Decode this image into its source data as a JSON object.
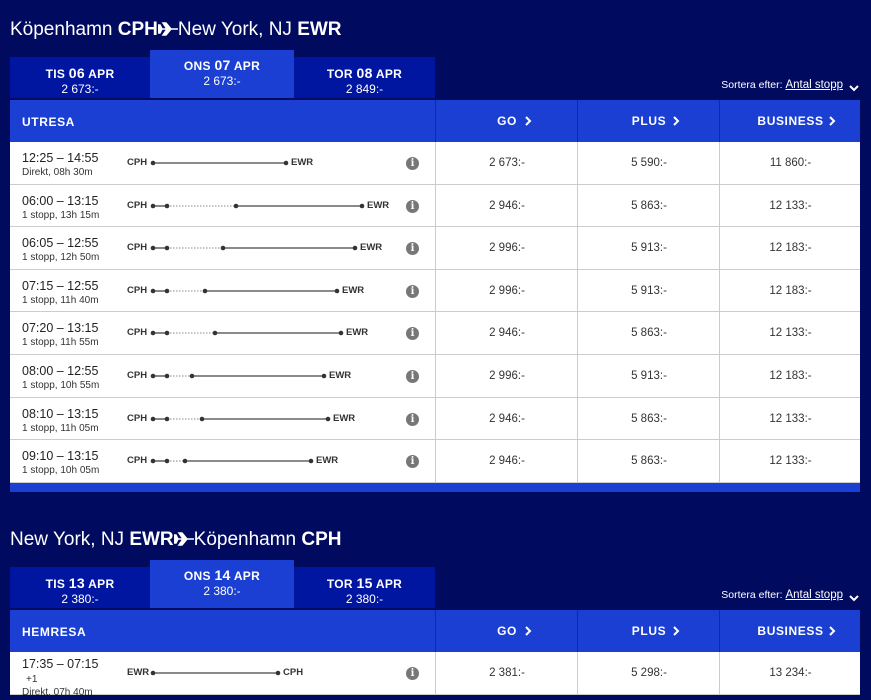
{
  "outbound": {
    "route": {
      "from_city": "Köpenhamn",
      "from_code": "CPH",
      "to_city": "New York, NJ",
      "to_code": "EWR"
    },
    "dates": [
      {
        "day": "TIS",
        "date": "06",
        "month": "APR",
        "price": "2 673:-"
      },
      {
        "day": "ONS",
        "date": "07",
        "month": "APR",
        "price": "2 673:-"
      },
      {
        "day": "TOR",
        "date": "08",
        "month": "APR",
        "price": "2 849:-"
      }
    ],
    "sort_label": "Sortera efter:",
    "sort_value": "Antal stopp",
    "header": {
      "title": "UTRESA",
      "classes": [
        "GO",
        "PLUS",
        "BUSINESS"
      ]
    },
    "flights": [
      {
        "time": "12:25 – 14:55",
        "info": "Direkt, 08h 30m",
        "from": "CPH",
        "to": "EWR",
        "prices": [
          "2 673:-",
          "5 590:-",
          "11 860:-"
        ]
      },
      {
        "time": "06:00 – 13:15",
        "info": "1 stopp, 13h 15m",
        "from": "CPH",
        "to": "EWR",
        "prices": [
          "2 946:-",
          "5 863:-",
          "12 133:-"
        ]
      },
      {
        "time": "06:05 – 12:55",
        "info": "1 stopp, 12h 50m",
        "from": "CPH",
        "to": "EWR",
        "prices": [
          "2 996:-",
          "5 913:-",
          "12 183:-"
        ]
      },
      {
        "time": "07:15 – 12:55",
        "info": "1 stopp, 11h 40m",
        "from": "CPH",
        "to": "EWR",
        "prices": [
          "2 996:-",
          "5 913:-",
          "12 183:-"
        ]
      },
      {
        "time": "07:20 – 13:15",
        "info": "1 stopp, 11h 55m",
        "from": "CPH",
        "to": "EWR",
        "prices": [
          "2 946:-",
          "5 863:-",
          "12 133:-"
        ]
      },
      {
        "time": "08:00 – 12:55",
        "info": "1 stopp, 10h 55m",
        "from": "CPH",
        "to": "EWR",
        "prices": [
          "2 996:-",
          "5 913:-",
          "12 183:-"
        ]
      },
      {
        "time": "08:10 – 13:15",
        "info": "1 stopp, 11h 05m",
        "from": "CPH",
        "to": "EWR",
        "prices": [
          "2 946:-",
          "5 863:-",
          "12 133:-"
        ]
      },
      {
        "time": "09:10 – 13:15",
        "info": "1 stopp, 10h 05m",
        "from": "CPH",
        "to": "EWR",
        "prices": [
          "2 946:-",
          "5 863:-",
          "12 133:-"
        ]
      }
    ]
  },
  "inbound": {
    "route": {
      "from_city": "New York, NJ",
      "from_code": "EWR",
      "to_city": "Köpenhamn",
      "to_code": "CPH"
    },
    "dates": [
      {
        "day": "TIS",
        "date": "13",
        "month": "APR",
        "price": "2 380:-"
      },
      {
        "day": "ONS",
        "date": "14",
        "month": "APR",
        "price": "2 380:-"
      },
      {
        "day": "TOR",
        "date": "15",
        "month": "APR",
        "price": "2 380:-"
      }
    ],
    "sort_label": "Sortera efter:",
    "sort_value": "Antal stopp",
    "header": {
      "title": "HEMRESA",
      "classes": [
        "GO",
        "PLUS",
        "BUSINESS"
      ]
    },
    "flights": [
      {
        "time": "17:35 – 07:15",
        "day_offset": "+1",
        "info": "Direkt, 07h 40m",
        "from": "EWR",
        "to": "CPH",
        "prices": [
          "2 381:-",
          "5 298:-",
          "13 234:-"
        ]
      }
    ]
  }
}
